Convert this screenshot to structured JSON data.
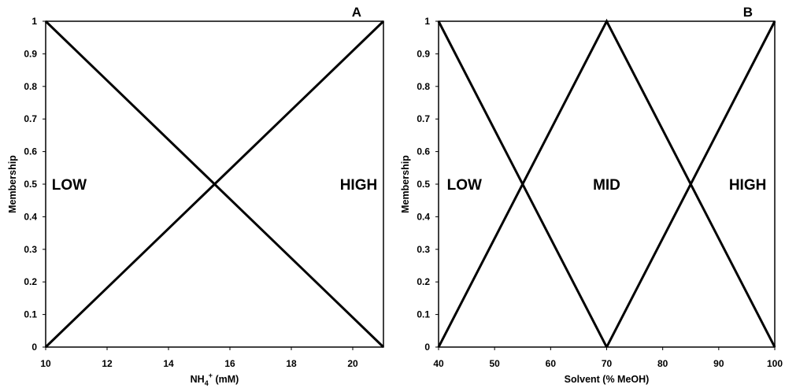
{
  "chart_data": [
    {
      "type": "line",
      "panel_label": "A",
      "xlabel": {
        "base": "NH",
        "sub": "4",
        "sup": "+",
        "rest": " (mM)"
      },
      "ylabel": "Membership",
      "xlim": [
        10,
        21
      ],
      "ylim": [
        0,
        1
      ],
      "xticks": [
        10,
        12,
        14,
        16,
        18,
        20
      ],
      "yticks": [
        "0",
        "0.1",
        "0.2",
        "0.3",
        "0.4",
        "0.5",
        "0.6",
        "0.7",
        "0.8",
        "0.9",
        "1"
      ],
      "grid": false,
      "series": [
        {
          "x": [
            10,
            21
          ],
          "y": [
            1,
            0
          ]
        },
        {
          "x": [
            10,
            21
          ],
          "y": [
            0,
            1
          ]
        }
      ],
      "annotations": [
        {
          "text": "LOW",
          "x": 10.2,
          "y": 0.5
        },
        {
          "text": "HIGH",
          "x": 20.8,
          "y": 0.5
        }
      ]
    },
    {
      "type": "line",
      "panel_label": "B",
      "xlabel": {
        "base": "Solvent (% MeOH)",
        "sub": "",
        "sup": "",
        "rest": ""
      },
      "ylabel": "Membership",
      "xlim": [
        40,
        100
      ],
      "ylim": [
        0,
        1
      ],
      "xticks": [
        40,
        50,
        60,
        70,
        80,
        90,
        100
      ],
      "yticks": [
        "0",
        "0.1",
        "0.2",
        "0.3",
        "0.4",
        "0.5",
        "0.6",
        "0.7",
        "0.8",
        "0.9",
        "1"
      ],
      "grid": false,
      "series": [
        {
          "x": [
            40,
            70
          ],
          "y": [
            1,
            0
          ]
        },
        {
          "x": [
            40,
            70,
            100
          ],
          "y": [
            0,
            1,
            0
          ]
        },
        {
          "x": [
            70,
            100
          ],
          "y": [
            0,
            1
          ]
        }
      ],
      "annotations": [
        {
          "text": "LOW",
          "x": 41.5,
          "y": 0.5
        },
        {
          "text": "MID",
          "x": 70,
          "y": 0.5
        },
        {
          "text": "HIGH",
          "x": 98.5,
          "y": 0.5
        }
      ]
    }
  ]
}
